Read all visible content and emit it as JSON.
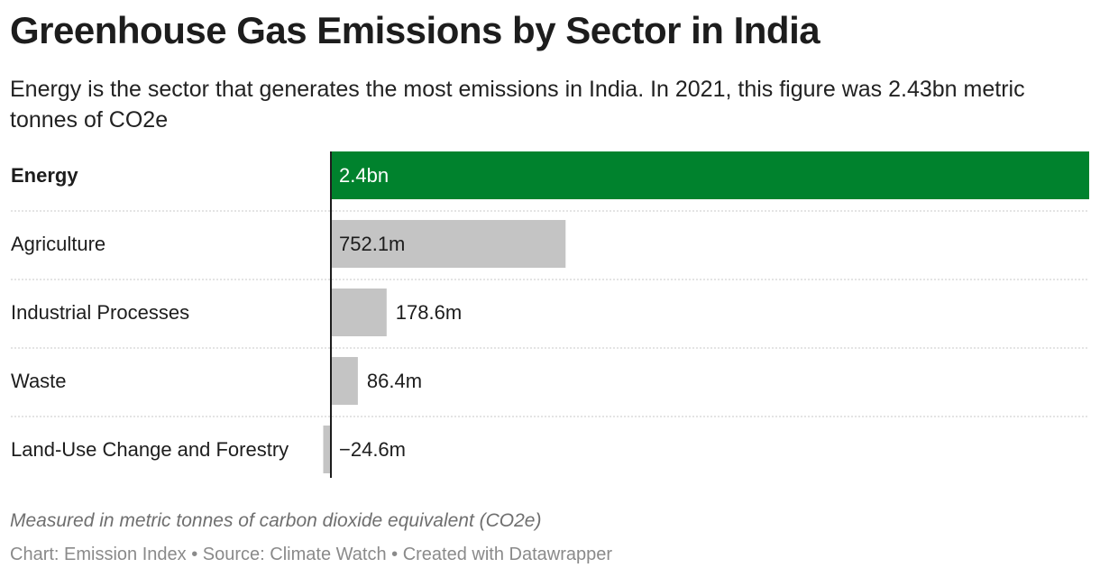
{
  "header": {
    "title": "Greenhouse Gas Emissions by Sector in India",
    "subtitle": "Energy is the sector that generates the most emissions in India. In 2021, this figure was 2.43bn metric tonnes of CO2e"
  },
  "chart_data": {
    "type": "bar",
    "orientation": "horizontal",
    "categories": [
      "Energy",
      "Agriculture",
      "Industrial Processes",
      "Waste",
      "Land-Use Change and Forestry"
    ],
    "values": [
      2430,
      752.1,
      178.6,
      86.4,
      -24.6
    ],
    "value_unit": "million metric tonnes CO2e",
    "value_labels": [
      "2.4bn",
      "752.1m",
      "178.6m",
      "86.4m",
      "−24.6m"
    ],
    "highlight_index": 0,
    "grid": false,
    "colors": {
      "highlight": "#00822d",
      "default": "#c4c4c4",
      "axis": "#1d1d1d",
      "divider": "#d4d4d4"
    }
  },
  "notes": "Measured in metric tonnes of carbon dioxide equivalent (CO2e)",
  "footer": {
    "chart_label": "Chart:",
    "chart_value": "Emission Index",
    "separator_1": " • ",
    "source_label": "Source:",
    "source_value": "Climate Watch",
    "separator_2": " • ",
    "credit": "Created with Datawrapper"
  }
}
